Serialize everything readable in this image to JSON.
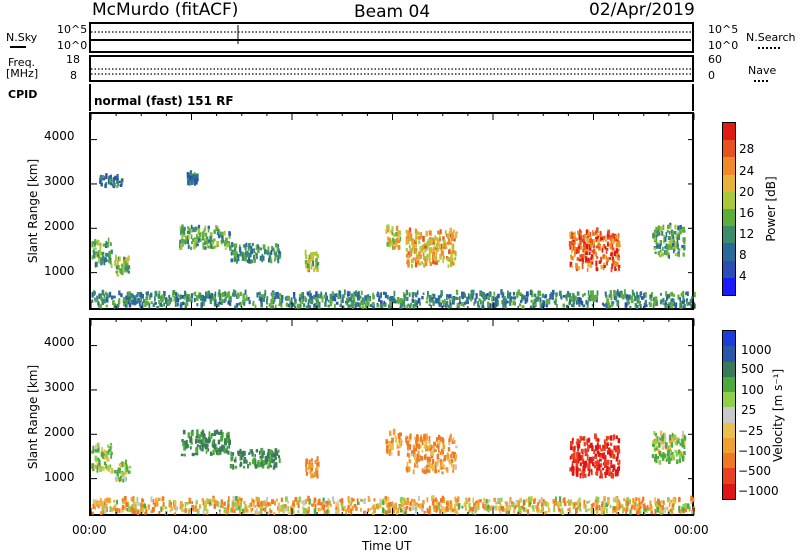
{
  "header": {
    "station": "McMurdo (fitACF)",
    "beam": "Beam 04",
    "date": "02/Apr/2019"
  },
  "noise_panel": {
    "left_label": "N.Sky",
    "right_label": "N.Search",
    "left_ticks": [
      "10^5",
      "10^0"
    ],
    "right_ticks": [
      "10^5",
      "10^0"
    ]
  },
  "freq_panel": {
    "left_label_1": "Freq.",
    "left_label_2": "[MHz]",
    "right_label": "Nave",
    "left_ticks": [
      "18",
      "8"
    ],
    "right_ticks": [
      "60",
      "0"
    ]
  },
  "cpid_panel": {
    "label": "CPID",
    "text": "normal (fast) 151 RF"
  },
  "power_panel": {
    "ylabel": "Slant Range [km]",
    "yticks": [
      "1000",
      "2000",
      "3000",
      "4000"
    ],
    "colorbar_label": "Power [dB]",
    "colorbar_ticks": [
      "4",
      "8",
      "12",
      "16",
      "20",
      "24",
      "28"
    ],
    "colorbar_colors": [
      "#1a1aff",
      "#2a4fb3",
      "#2a6a9a",
      "#3a8c6a",
      "#5fae3c",
      "#a8c83c",
      "#e6b23a",
      "#f08a28",
      "#e8521e",
      "#e01a14"
    ]
  },
  "velocity_panel": {
    "ylabel": "Slant Range [km]",
    "yticks": [
      "1000",
      "2000",
      "3000",
      "4000"
    ],
    "colorbar_label": "Velocity [m s⁻¹]",
    "colorbar_ticks": [
      "1000",
      "500",
      "100",
      "25",
      "−25",
      "−100",
      "−500",
      "−1000"
    ],
    "colorbar_colors": [
      "#1a3fd8",
      "#2a57a8",
      "#3a7a5a",
      "#4caa3a",
      "#8fd04a",
      "#c8c8c8",
      "#e8c050",
      "#f0a030",
      "#f07820",
      "#e84020",
      "#e01414"
    ]
  },
  "xaxis": {
    "ticks": [
      "00:00",
      "04:00",
      "08:00",
      "12:00",
      "16:00",
      "20:00",
      "00:00"
    ],
    "label": "Time UT"
  },
  "chart_data": [
    {
      "type": "heatmap",
      "title": "Beam 04",
      "xlabel": "Time UT",
      "ylabel": "Slant Range [km]",
      "ylim": [
        180,
        4600
      ],
      "colorbar": {
        "label": "Power [dB]",
        "range": [
          0,
          30
        ],
        "ticks": [
          4,
          8,
          12,
          16,
          20,
          24,
          28
        ]
      },
      "x_ticks": [
        "00:00",
        "04:00",
        "08:00",
        "12:00",
        "16:00",
        "20:00",
        "00:00"
      ],
      "patches": [
        {
          "t0": 0.0,
          "t1": 0.8,
          "r0": 1100,
          "r1": 1700,
          "value": 12
        },
        {
          "t0": 0.9,
          "t1": 1.5,
          "r0": 900,
          "r1": 1300,
          "value": 14
        },
        {
          "t0": 0.3,
          "t1": 1.2,
          "r0": 2900,
          "r1": 3150,
          "value": 8
        },
        {
          "t0": 3.5,
          "t1": 5.5,
          "r0": 1500,
          "r1": 2000,
          "value": 12
        },
        {
          "t0": 5.5,
          "t1": 7.5,
          "r0": 1200,
          "r1": 1600,
          "value": 10
        },
        {
          "t0": 3.8,
          "t1": 4.2,
          "r0": 2950,
          "r1": 3200,
          "value": 8
        },
        {
          "t0": 8.5,
          "t1": 9.0,
          "r0": 1000,
          "r1": 1400,
          "value": 16
        },
        {
          "t0": 11.7,
          "t1": 12.3,
          "r0": 1500,
          "r1": 2000,
          "value": 18
        },
        {
          "t0": 12.5,
          "t1": 14.5,
          "r0": 1100,
          "r1": 1900,
          "value": 20
        },
        {
          "t0": 19.0,
          "t1": 21.0,
          "r0": 1000,
          "r1": 1900,
          "value": 24
        },
        {
          "t0": 22.3,
          "t1": 23.6,
          "r0": 1300,
          "r1": 2000,
          "value": 12
        },
        {
          "t0": 0.0,
          "t1": 24.0,
          "r0": 180,
          "r1": 500,
          "value": 10
        }
      ]
    },
    {
      "type": "heatmap",
      "xlabel": "Time UT",
      "ylabel": "Slant Range [km]",
      "ylim": [
        180,
        4600
      ],
      "colorbar": {
        "label": "Velocity [m s⁻¹]",
        "ticks": [
          1000,
          500,
          100,
          25,
          -25,
          -100,
          -500,
          -1000
        ]
      },
      "x_ticks": [
        "00:00",
        "04:00",
        "08:00",
        "12:00",
        "16:00",
        "20:00",
        "00:00"
      ],
      "patches": [
        {
          "t0": 0.0,
          "t1": 0.8,
          "r0": 1100,
          "r1": 1700,
          "value": 100
        },
        {
          "t0": 0.9,
          "t1": 1.5,
          "r0": 900,
          "r1": 1300,
          "value": 100
        },
        {
          "t0": 3.5,
          "t1": 5.5,
          "r0": 1500,
          "r1": 2000,
          "value": 300
        },
        {
          "t0": 5.5,
          "t1": 7.5,
          "r0": 1200,
          "r1": 1600,
          "value": 300
        },
        {
          "t0": 8.5,
          "t1": 9.0,
          "r0": 1000,
          "r1": 1400,
          "value": -100
        },
        {
          "t0": 11.7,
          "t1": 12.3,
          "r0": 1500,
          "r1": 2000,
          "value": -100
        },
        {
          "t0": 12.5,
          "t1": 14.5,
          "r0": 1100,
          "r1": 1900,
          "value": -100
        },
        {
          "t0": 19.0,
          "t1": 21.0,
          "r0": 1000,
          "r1": 1900,
          "value": -500
        },
        {
          "t0": 22.3,
          "t1": 23.6,
          "r0": 1300,
          "r1": 2000,
          "value": 100
        },
        {
          "t0": 0.0,
          "t1": 24.0,
          "r0": 180,
          "r1": 500,
          "value": -30
        }
      ]
    }
  ]
}
